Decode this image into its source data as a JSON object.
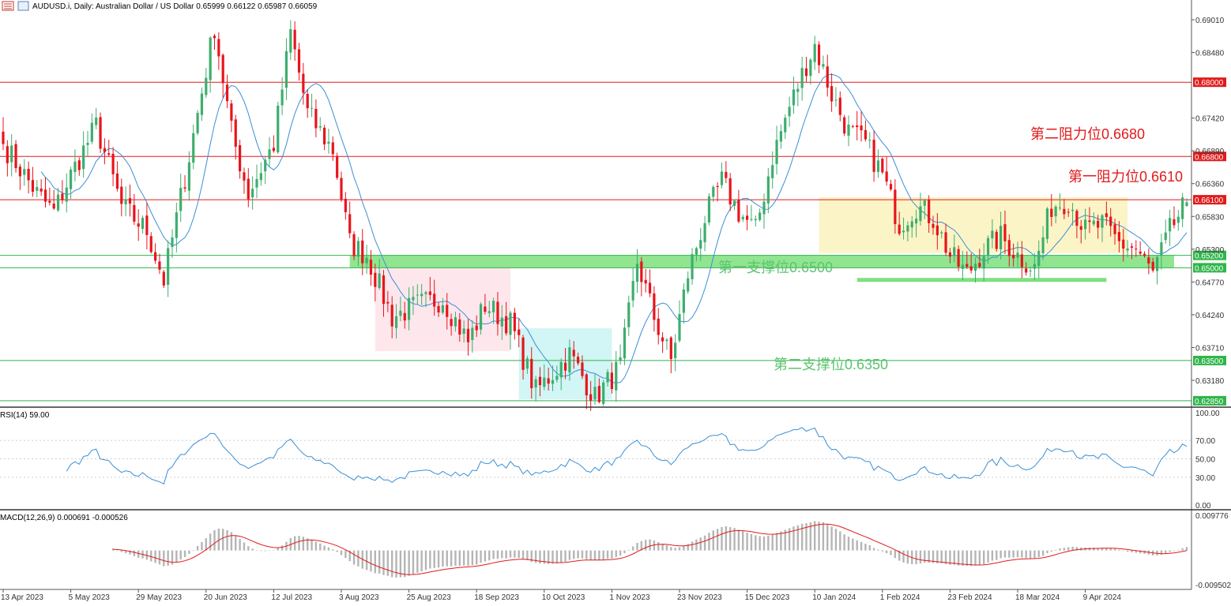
{
  "header": {
    "symbol_line": "AUDUSD.i, Daily:  Australian Dollar / US Dollar  0.65999 0.66122 0.65987 0.66059"
  },
  "colors": {
    "bull": "#3dae6e",
    "bear": "#e8141c",
    "ma": "#3a8fd6",
    "resistance": "#e01b1b",
    "support": "#2fb54a",
    "support_zone": "#7ee07e",
    "range_box": "#fbf3c4",
    "pink_box": "#fde4ea",
    "cyan_box": "#cdf4f4",
    "rsi_line": "#3a8fd6",
    "macd_hist": "#b5b5b5",
    "macd_signal": "#e01b1b"
  },
  "price_axis": {
    "labels": [
      "0.69010",
      "0.68480",
      "0.67420",
      "0.66890",
      "0.66360",
      "0.65830",
      "0.65300",
      "0.64770",
      "0.64240",
      "0.63710",
      "0.63180"
    ],
    "values": [
      0.6901,
      0.6848,
      0.6742,
      0.6689,
      0.6636,
      0.6583,
      0.653,
      0.6477,
      0.6424,
      0.6371,
      0.6318
    ],
    "range": [
      0.6281,
      0.6924
    ]
  },
  "x_axis": {
    "date_labels": [
      "13 Apr 2023",
      "5 May 2023",
      "29 May 2023",
      "20 Jun 2023",
      "12 Jul 2023",
      "3 Aug 2023",
      "25 Aug 2023",
      "18 Sep 2023",
      "10 Oct 2023",
      "1 Nov 2023",
      "23 Nov 2023",
      "15 Dec 2023",
      "10 Jan 2024",
      "1 Feb 2024",
      "23 Feb 2024",
      "18 Mar 2024",
      "9 Apr 2024"
    ],
    "date_label_bars": [
      0,
      16,
      32,
      48,
      64,
      80,
      96,
      112,
      128,
      144,
      160,
      176,
      192,
      208,
      224,
      240,
      256
    ]
  },
  "levels": [
    {
      "price": 0.68,
      "label": "0.68000",
      "kind": "resistance"
    },
    {
      "price": 0.668,
      "label": "0.66800",
      "kind": "resistance"
    },
    {
      "price": 0.661,
      "label": "0.66100",
      "kind": "resistance"
    },
    {
      "price": 0.652,
      "label": "0.65200",
      "kind": "support"
    },
    {
      "price": 0.65,
      "label": "0.65000",
      "kind": "support"
    },
    {
      "price": 0.635,
      "label": "0.63500",
      "kind": "support"
    },
    {
      "price": 0.6285,
      "label": "0.62850",
      "kind": "support"
    }
  ],
  "annotations": {
    "r2": "第二阻力位0.6680",
    "r1": "第一阻力位0.6610",
    "s1": "第一支撑位0.6500",
    "s2": "第二支撑位0.6350"
  },
  "rsi": {
    "header": "RSI(14) 59.00",
    "axis_labels": [
      "100.00",
      "70.00",
      "50.00",
      "30.00",
      "0.00"
    ],
    "axis_values": [
      100,
      70,
      50,
      30,
      0
    ],
    "period": 14,
    "last": 59.0
  },
  "macd": {
    "header": "MACD(12,26,9) 0.000691 -0.000526",
    "axis_labels": [
      "0.009776",
      "-0.009502"
    ],
    "axis_values": [
      0.009776,
      -0.009502
    ],
    "params": [
      12,
      26,
      9
    ]
  },
  "chart_data": {
    "type": "candlestick",
    "symbol": "AUDUSD.i",
    "timeframe": "Daily",
    "last_ohlc": [
      0.65999,
      0.66122,
      0.65987,
      0.66059
    ],
    "key_closes": [
      {
        "bar": 0,
        "close": 0.67
      },
      {
        "bar": 8,
        "close": 0.662
      },
      {
        "bar": 12,
        "close": 0.659
      },
      {
        "bar": 16,
        "close": 0.665
      },
      {
        "bar": 22,
        "close": 0.673
      },
      {
        "bar": 28,
        "close": 0.66
      },
      {
        "bar": 34,
        "close": 0.656
      },
      {
        "bar": 38,
        "close": 0.648
      },
      {
        "bar": 44,
        "close": 0.668
      },
      {
        "bar": 50,
        "close": 0.689
      },
      {
        "bar": 54,
        "close": 0.672
      },
      {
        "bar": 58,
        "close": 0.662
      },
      {
        "bar": 64,
        "close": 0.67
      },
      {
        "bar": 68,
        "close": 0.688
      },
      {
        "bar": 72,
        "close": 0.675
      },
      {
        "bar": 78,
        "close": 0.669
      },
      {
        "bar": 82,
        "close": 0.654
      },
      {
        "bar": 86,
        "close": 0.652
      },
      {
        "bar": 92,
        "close": 0.642
      },
      {
        "bar": 98,
        "close": 0.644
      },
      {
        "bar": 104,
        "close": 0.645
      },
      {
        "bar": 110,
        "close": 0.638
      },
      {
        "bar": 114,
        "close": 0.644
      },
      {
        "bar": 120,
        "close": 0.641
      },
      {
        "bar": 126,
        "close": 0.63
      },
      {
        "bar": 130,
        "close": 0.633
      },
      {
        "bar": 134,
        "close": 0.636
      },
      {
        "bar": 140,
        "close": 0.629
      },
      {
        "bar": 146,
        "close": 0.634
      },
      {
        "bar": 150,
        "close": 0.651
      },
      {
        "bar": 154,
        "close": 0.642
      },
      {
        "bar": 158,
        "close": 0.635
      },
      {
        "bar": 162,
        "close": 0.649
      },
      {
        "bar": 166,
        "close": 0.658
      },
      {
        "bar": 170,
        "close": 0.664
      },
      {
        "bar": 174,
        "close": 0.659
      },
      {
        "bar": 178,
        "close": 0.656
      },
      {
        "bar": 182,
        "close": 0.668
      },
      {
        "bar": 186,
        "close": 0.676
      },
      {
        "bar": 190,
        "close": 0.683
      },
      {
        "bar": 192,
        "close": 0.686
      },
      {
        "bar": 196,
        "close": 0.678
      },
      {
        "bar": 200,
        "close": 0.672
      },
      {
        "bar": 204,
        "close": 0.67
      },
      {
        "bar": 208,
        "close": 0.665
      },
      {
        "bar": 212,
        "close": 0.657
      },
      {
        "bar": 216,
        "close": 0.66
      },
      {
        "bar": 220,
        "close": 0.658
      },
      {
        "bar": 224,
        "close": 0.652
      },
      {
        "bar": 228,
        "close": 0.649
      },
      {
        "bar": 232,
        "close": 0.653
      },
      {
        "bar": 236,
        "close": 0.655
      },
      {
        "bar": 240,
        "close": 0.652
      },
      {
        "bar": 244,
        "close": 0.65
      },
      {
        "bar": 248,
        "close": 0.66
      },
      {
        "bar": 252,
        "close": 0.661
      },
      {
        "bar": 256,
        "close": 0.656
      },
      {
        "bar": 260,
        "close": 0.657
      },
      {
        "bar": 264,
        "close": 0.654
      },
      {
        "bar": 268,
        "close": 0.653
      },
      {
        "bar": 272,
        "close": 0.649
      },
      {
        "bar": 276,
        "close": 0.656
      },
      {
        "bar": 280,
        "close": 0.6606
      }
    ],
    "moving_average_period": 10,
    "range_box": {
      "from_bar": 193,
      "to_bar": 266,
      "top": 0.6614,
      "bottom": 0.6524
    },
    "pink_box": {
      "from_bar": 88,
      "to_bar": 120,
      "top": 0.65,
      "bottom": 0.6365
    },
    "cyan_box": {
      "from_bar": 122,
      "to_bar": 144,
      "top": 0.6402,
      "bottom": 0.6287
    },
    "support_zone": {
      "from_bar": 82,
      "to_bar": 277,
      "top": 0.652,
      "bottom": 0.65
    },
    "support_bar": {
      "from_bar": 202,
      "to_bar": 261,
      "price": 0.6481
    },
    "xlabel": "",
    "ylabel": ""
  }
}
